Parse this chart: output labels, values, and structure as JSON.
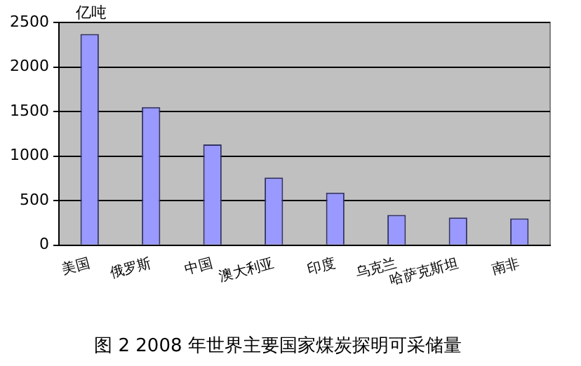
{
  "chart_data": {
    "type": "bar",
    "title": "图 2 2008 年世界主要国家煤炭探明可采储量",
    "ylabel": "亿吨",
    "categories": [
      "美国",
      "俄罗斯",
      "中国",
      "澳大利亚",
      "印度",
      "乌克兰",
      "哈萨克斯坦",
      "南非"
    ],
    "values": [
      2370,
      1550,
      1130,
      760,
      590,
      340,
      310,
      300
    ],
    "color": "#9999ff",
    "ylim": [
      0,
      2500
    ],
    "yticks": [
      0,
      500,
      1000,
      1500,
      2000,
      2500
    ],
    "grid": "y",
    "legend": false
  }
}
